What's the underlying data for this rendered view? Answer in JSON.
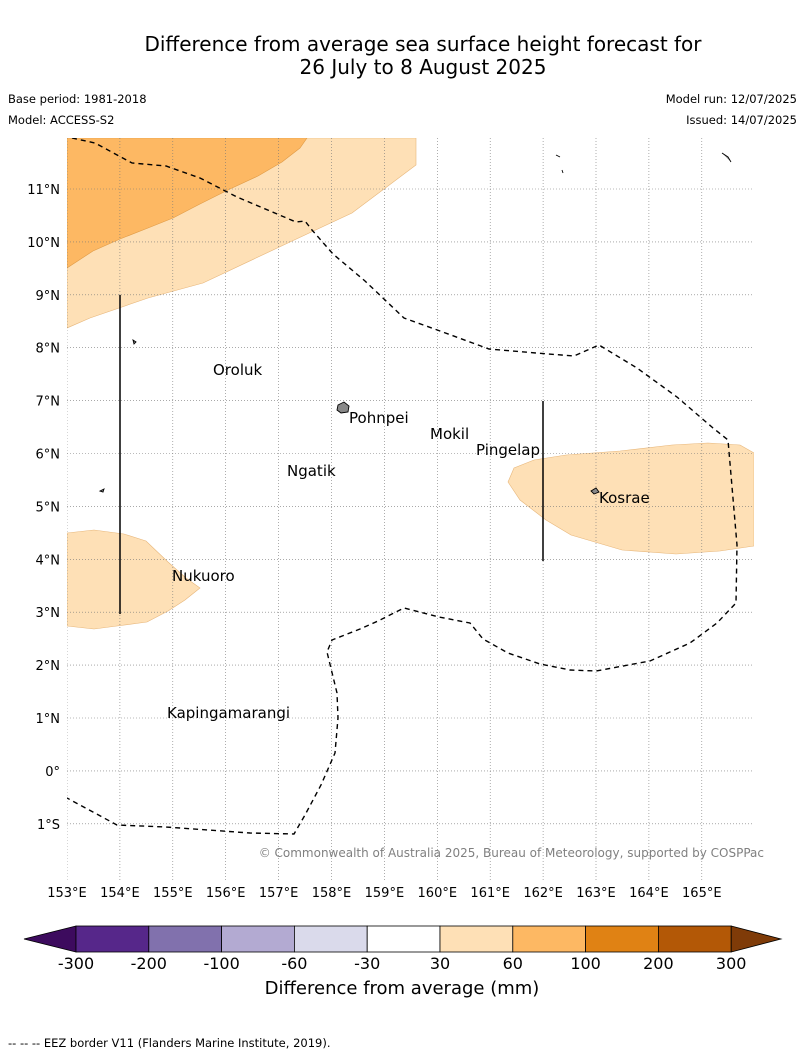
{
  "title": {
    "line1": "Difference from average sea surface height forecast for",
    "line2": "26 July to 8 August 2025"
  },
  "meta": {
    "base_period": "Base period: 1981-2018",
    "model": "Model: ACCESS-S2",
    "model_run": "Model run: 12/07/2025",
    "issued": "Issued: 14/07/2025"
  },
  "map": {
    "lon_labels": [
      "153°E",
      "154°E",
      "155°E",
      "156°E",
      "157°E",
      "158°E",
      "159°E",
      "160°E",
      "161°E",
      "162°E",
      "163°E",
      "164°E",
      "165°E"
    ],
    "lat_labels": [
      "11°N",
      "10°N",
      "9°N",
      "8°N",
      "7°N",
      "6°N",
      "5°N",
      "4°N",
      "3°N",
      "2°N",
      "1°N",
      "0°",
      "1°S"
    ],
    "places": [
      {
        "name": "Oroluk"
      },
      {
        "name": "Pohnpei"
      },
      {
        "name": "Mokil"
      },
      {
        "name": "Pingelap"
      },
      {
        "name": "Ngatik"
      },
      {
        "name": "Kosrae"
      },
      {
        "name": "Nukuoro"
      },
      {
        "name": "Kapingamarangi"
      }
    ],
    "credit": "© Commonwealth of Australia 2025, Bureau of Meteorology, supported by COSPPac"
  },
  "colorbar": {
    "title": "Difference from average (mm)",
    "ticks": [
      "-300",
      "-200",
      "-100",
      "-60",
      "-30",
      "30",
      "60",
      "100",
      "200",
      "300"
    ],
    "colors": [
      "#3d0b5e",
      "#56278a",
      "#8171ad",
      "#b3aad2",
      "#dadaeb",
      "#ffffff",
      "#fee0b6",
      "#fdb863",
      "#e08214",
      "#b35806",
      "#7f3b08"
    ]
  },
  "legend_note": "--  --  -- EEZ border V11 (Flanders Marine Institute, 2019)."
}
